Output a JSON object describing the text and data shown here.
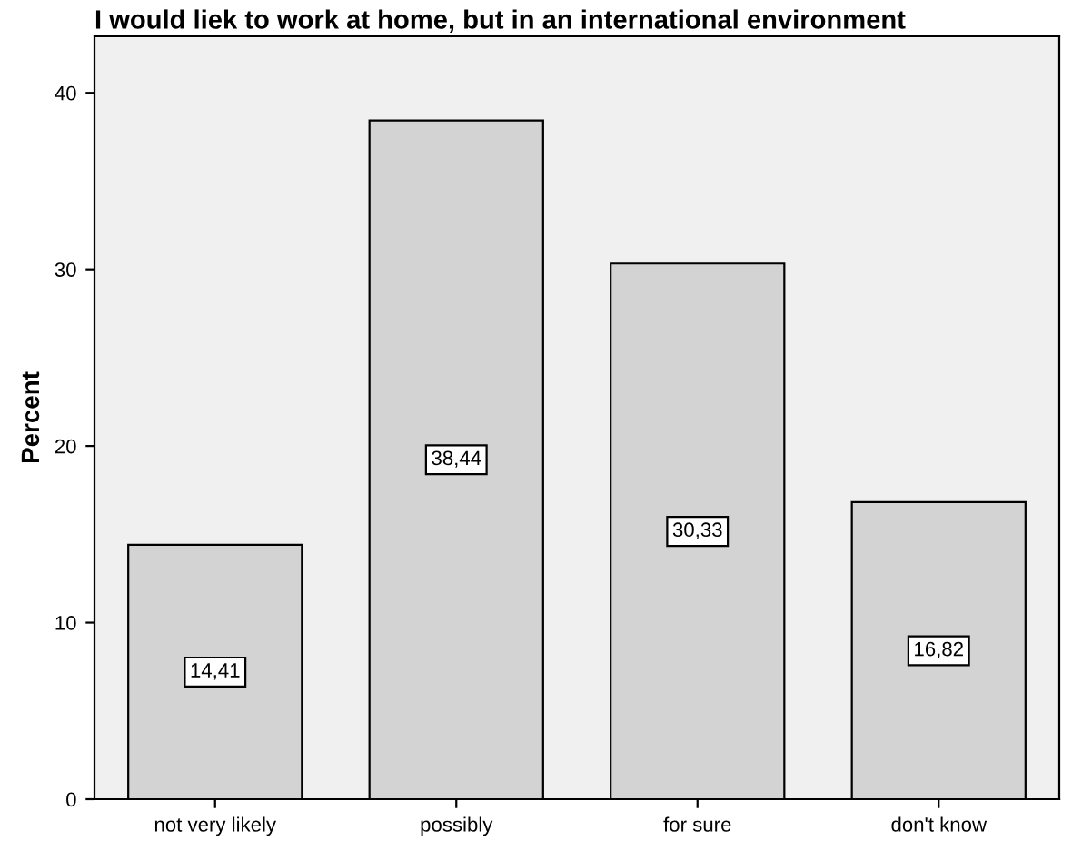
{
  "chart_data": {
    "type": "bar",
    "title": "I would liek to work at home, but in an international environment",
    "ylabel": "Percent",
    "categories": [
      "not very likely",
      "possibly",
      "for sure",
      "don't know"
    ],
    "values": [
      14.41,
      38.44,
      30.33,
      16.82
    ],
    "value_labels": [
      "14,41",
      "38,44",
      "30,33",
      "16,82"
    ],
    "color": "#d3d3d3",
    "ylim": [
      0,
      43.2
    ],
    "yticks": [
      0,
      10,
      20,
      30,
      40
    ],
    "grid": false
  }
}
